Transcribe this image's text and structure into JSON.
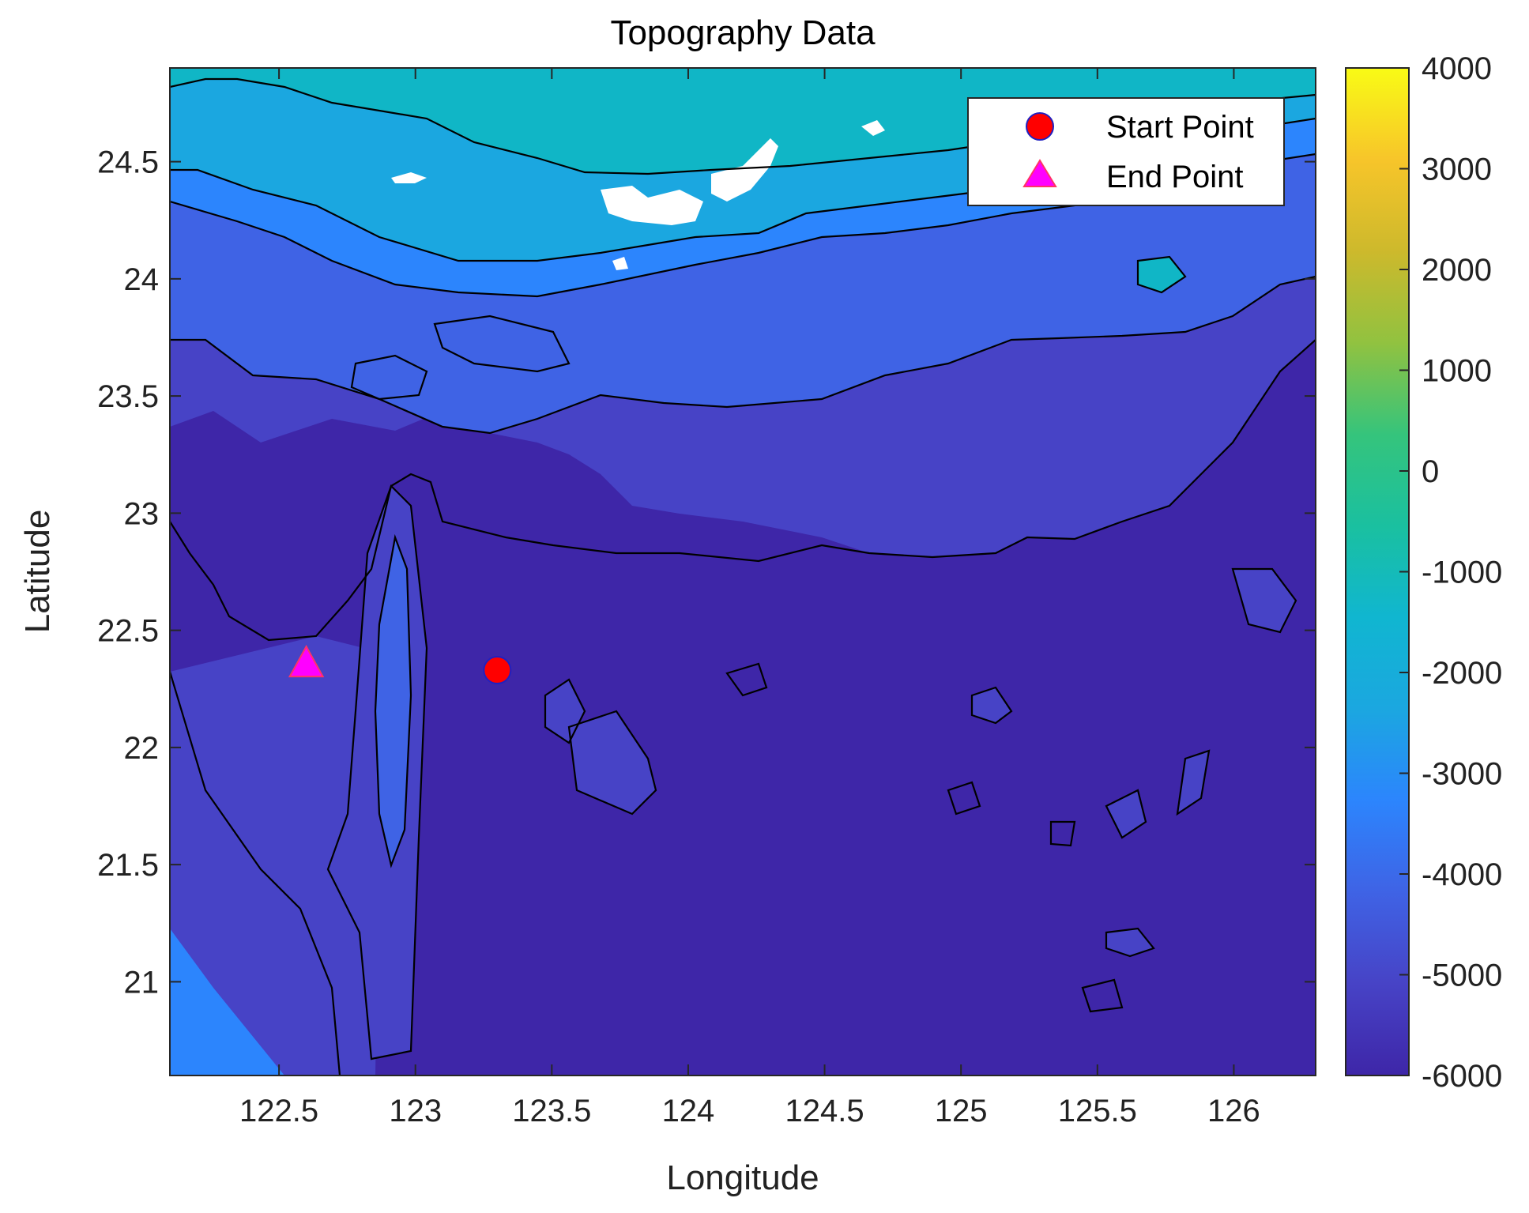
{
  "chart_data": {
    "type": "contour",
    "title": "Topography Data",
    "xlabel": "Longitude",
    "ylabel": "Latitude",
    "xlim": [
      122.1,
      126.3
    ],
    "ylim": [
      20.6,
      24.9
    ],
    "xticks": [
      122.5,
      123,
      123.5,
      124,
      124.5,
      125,
      125.5,
      126
    ],
    "xtick_labels": [
      "122.5",
      "123",
      "123.5",
      "124",
      "124.5",
      "125",
      "125.5",
      "126"
    ],
    "yticks": [
      21,
      21.5,
      22,
      22.5,
      23,
      23.5,
      24,
      24.5
    ],
    "ytick_labels": [
      "21",
      "21.5",
      "22",
      "22.5",
      "23",
      "23.5",
      "24",
      "24.5"
    ],
    "colorbar": {
      "range": [
        -6000,
        4000
      ],
      "ticks": [
        4000,
        3000,
        2000,
        1000,
        0,
        -1000,
        -2000,
        -3000,
        -4000,
        -5000,
        -6000
      ],
      "tick_labels": [
        "4000",
        "3000",
        "2000",
        "1000",
        "0",
        "-1000",
        "-2000",
        "-3000",
        "-4000",
        "-5000",
        "-6000"
      ],
      "colormap": [
        "#3e26a8",
        "#4743c6",
        "#3f63e5",
        "#2c85fd",
        "#1ba7e0",
        "#10b6d0",
        "#1ac0a0",
        "#35c47c",
        "#91c240",
        "#cdb92c",
        "#f7c52a",
        "#f9fb15"
      ]
    },
    "depth_bands": [
      {
        "level": "-6000 to -5000",
        "color": "#3e26a8"
      },
      {
        "level": "-5000 to -4000",
        "color": "#4743c6"
      },
      {
        "level": "-4000 to -3000",
        "color": "#3f63e5"
      },
      {
        "level": "-3000 to -2000",
        "color": "#2c85fd"
      },
      {
        "level": "-2000 to -1000",
        "color": "#1ba7e0"
      },
      {
        "level": "-1000 to 0",
        "color": "#10b6c6"
      },
      {
        "level": "> 0",
        "color": "#ffffff"
      }
    ],
    "points": [
      {
        "name": "Start Point",
        "lon": 123.3,
        "lat": 22.33,
        "marker": "circle",
        "color": "#ff0000",
        "edge": "#2020c0"
      },
      {
        "name": "End Point",
        "lon": 122.6,
        "lat": 22.35,
        "marker": "triangle",
        "color": "#ff00ff",
        "edge": "#ff3366"
      }
    ],
    "legend": {
      "placement": "top-right",
      "entries": [
        "Start Point",
        "End Point"
      ]
    },
    "grid": false
  }
}
